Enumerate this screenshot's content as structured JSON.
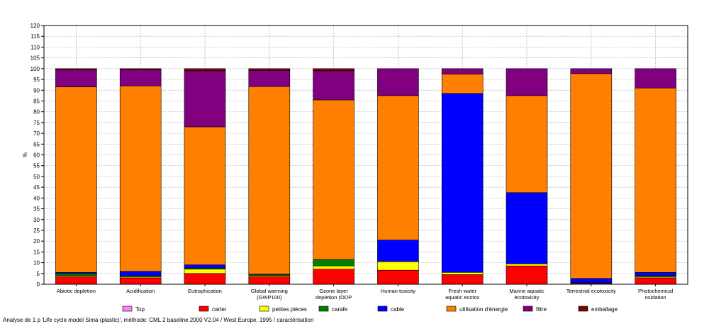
{
  "chart_data": {
    "type": "bar",
    "stacked": true,
    "ylabel": "%",
    "ylim": [
      0,
      120
    ],
    "ytick_step": 5,
    "grid": true,
    "legend_position": "bottom",
    "categories": [
      [
        "Abiotic depletion"
      ],
      [
        "Acidification"
      ],
      [
        "Eutrophication"
      ],
      [
        "Global warming",
        "(GWP100)"
      ],
      [
        "Ozone layer",
        "depletion (ODP"
      ],
      [
        "Human toxicity"
      ],
      [
        "Fresh water",
        "aquatic ecotox"
      ],
      [
        "Marine aquatic",
        "ecotoxicity"
      ],
      [
        "Terrestrial ecotoxicity"
      ],
      [
        "Photochemical",
        "oxidation"
      ]
    ],
    "series": [
      {
        "name": "Top",
        "color": "#ff80ff",
        "values": [
          0,
          0,
          0,
          0,
          0,
          0,
          0,
          0,
          0,
          0
        ]
      },
      {
        "name": "carter",
        "color": "#ff0000",
        "values": [
          3.5,
          3,
          5,
          3.5,
          7,
          6.5,
          4.5,
          8.5,
          0.5,
          3
        ]
      },
      {
        "name": "petites pièces",
        "color": "#ffff00",
        "values": [
          0.5,
          0.5,
          2,
          0.5,
          1.5,
          4,
          1,
          1,
          0.2,
          0.5
        ]
      },
      {
        "name": "carafe",
        "color": "#008000",
        "values": [
          1,
          0.5,
          0.5,
          0.5,
          3,
          0,
          0,
          0,
          0,
          0.5
        ]
      },
      {
        "name": "cable",
        "color": "#0000ff",
        "values": [
          0.5,
          2,
          1.5,
          0.2,
          0,
          10,
          83,
          33,
          2,
          1.5
        ]
      },
      {
        "name": "utilisation d'énergie",
        "color": "#ff8000",
        "values": [
          86,
          86,
          64,
          87,
          74,
          67,
          9,
          45,
          95,
          85.5
        ]
      },
      {
        "name": "filtre",
        "color": "#800080",
        "values": [
          8,
          7.5,
          26,
          7.5,
          13.5,
          12.5,
          2.5,
          12.5,
          2.3,
          9
        ]
      },
      {
        "name": "emballage",
        "color": "#800000",
        "values": [
          0.5,
          0.5,
          1,
          0.8,
          1,
          0,
          0,
          0,
          0,
          0
        ]
      }
    ]
  },
  "footer": "Analyse de 1 p 'Life cycle model Sima (plastic)', méthode: CML 2 baseline 2000 V2.04 / West Europe, 1995 / caractérisation"
}
